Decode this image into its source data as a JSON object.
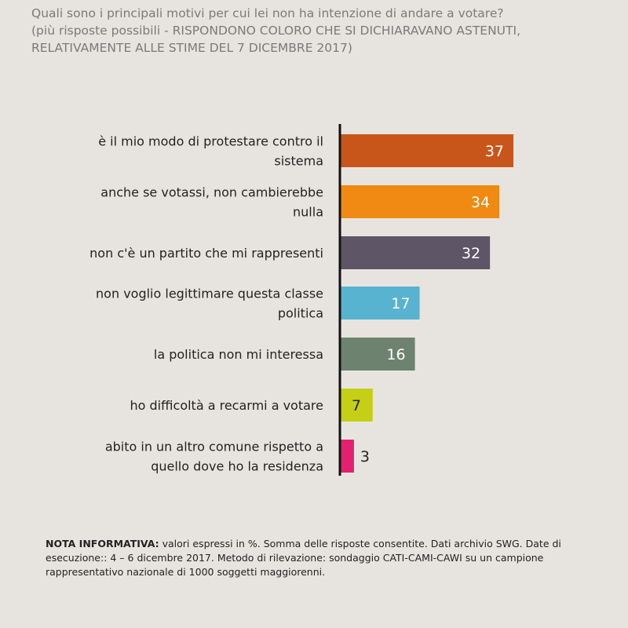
{
  "title": {
    "line1": "Quali sono i principali motivi per cui lei non ha intenzione di andare a votare?",
    "line2": "(più risposte possibili - RISPONDONO COLORO CHE SI DICHIARAVANO ASTENUTI,",
    "line3": "RELATIVAMENTE ALLE STIME DEL 7 DICEMBRE 2017)"
  },
  "chart_data": {
    "type": "bar",
    "orientation": "horizontal",
    "categories": [
      [
        "è il mio modo di protestare contro il",
        "sistema"
      ],
      [
        "anche se votassi, non cambierebbe",
        "nulla"
      ],
      [
        "non c'è un partito che mi rappresenti"
      ],
      [
        "non voglio legittimare questa classe",
        "politica"
      ],
      [
        "la politica non mi interessa"
      ],
      [
        "ho difficoltà a recarmi a votare"
      ],
      [
        "abito in un altro comune rispetto a",
        "quello dove ho la residenza"
      ]
    ],
    "values": [
      37,
      34,
      32,
      17,
      16,
      7,
      3
    ],
    "colors": [
      "#c8561b",
      "#f08a12",
      "#5e5566",
      "#57b3cf",
      "#6e8270",
      "#c5cf16",
      "#e3216f"
    ],
    "label_colors": [
      "#ffffff",
      "#ffffff",
      "#ffffff",
      "#ffffff",
      "#ffffff",
      "#222222",
      "#222222"
    ],
    "xlim": [
      0,
      37
    ],
    "grid": false
  },
  "note": {
    "label": "NOTA INFORMATIVA:",
    "text": " valori espressi in %. Somma delle risposte consentite. Dati archivio SWG. Date di esecuzione:: 4 – 6 dicembre 2017. Metodo di rilevazione: sondaggio CATI-CAMI-CAWI su un campione rappresentativo nazionale di 1000 soggetti maggiorenni."
  }
}
